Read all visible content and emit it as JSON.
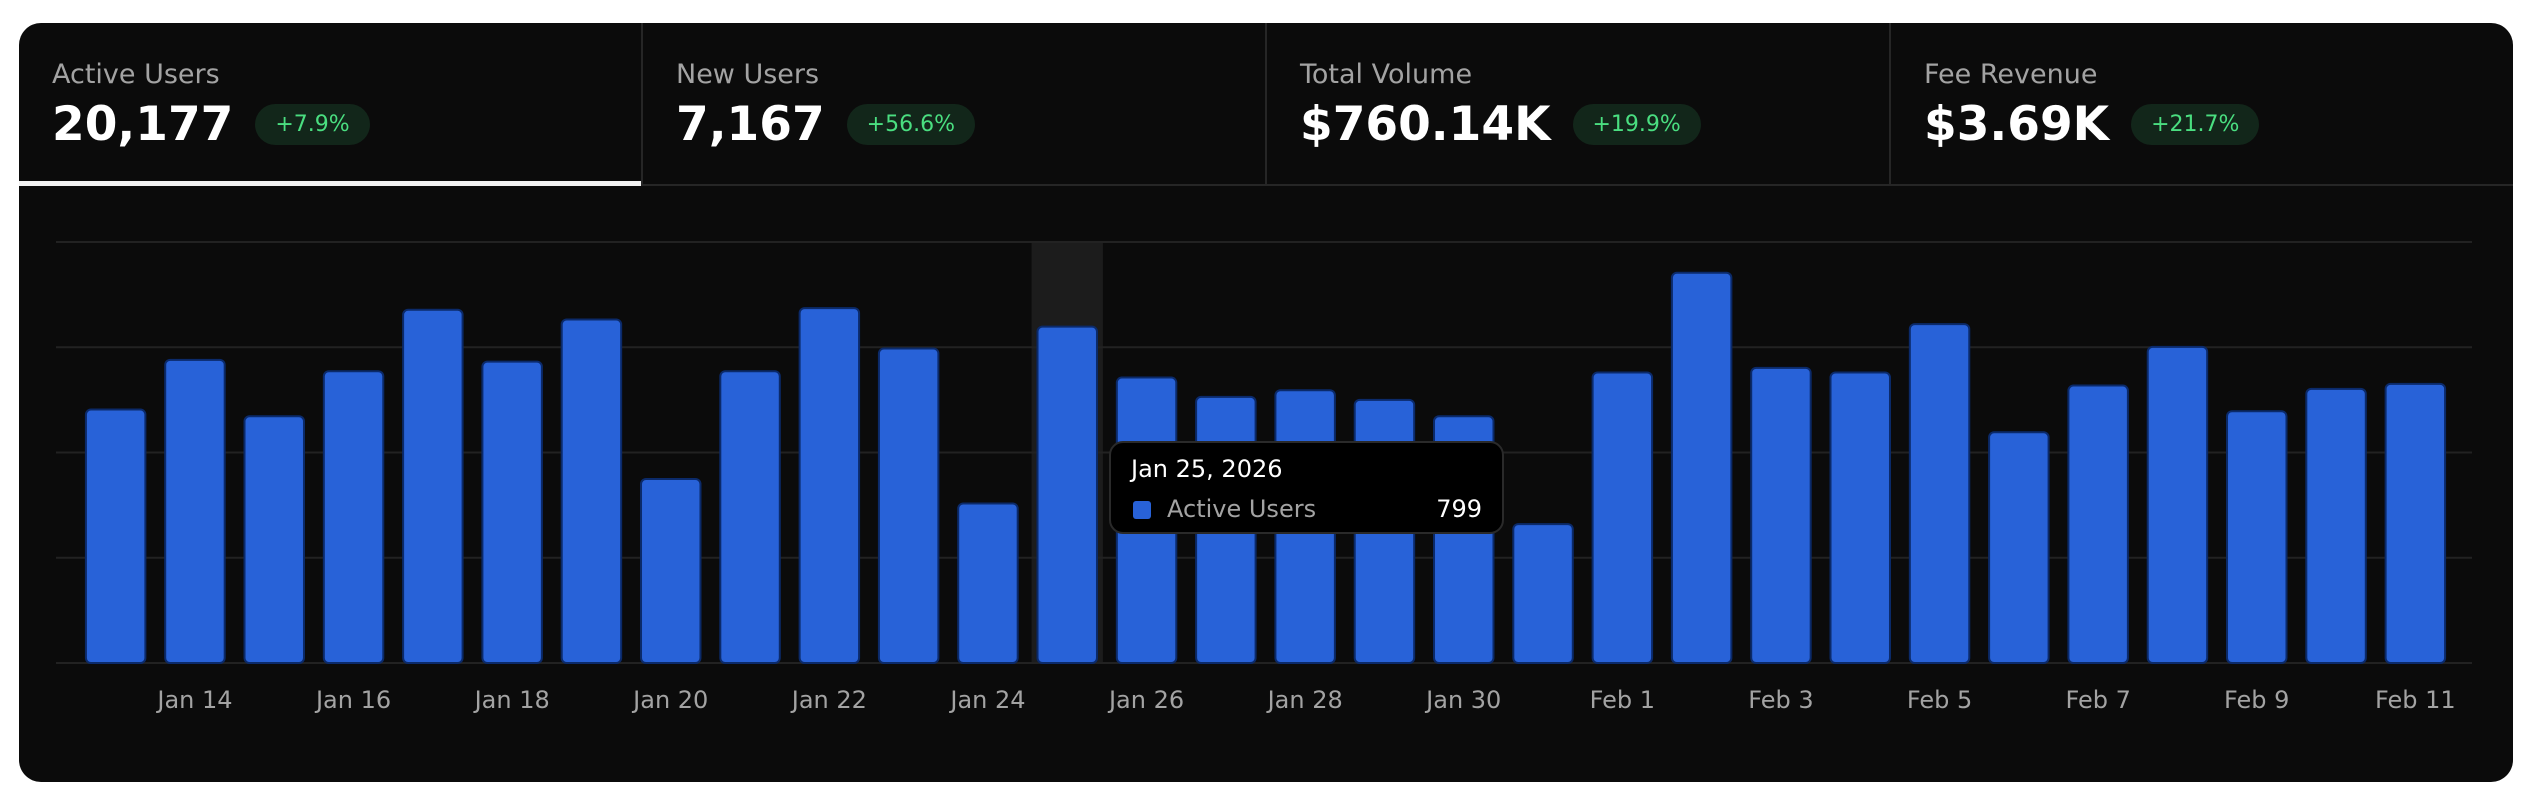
{
  "cards": [
    {
      "label": "Active Users",
      "value": "20,177",
      "delta": "+7.9%"
    },
    {
      "label": "New Users",
      "value": "7,167",
      "delta": "+56.6%"
    },
    {
      "label": "Total Volume",
      "value": "$760.14K",
      "delta": "+19.9%"
    },
    {
      "label": "Fee Revenue",
      "value": "$3.69K",
      "delta": "+21.7%"
    }
  ],
  "chart_data": {
    "type": "bar",
    "categories": [
      null,
      "Jan 14",
      null,
      "Jan 16",
      null,
      "Jan 18",
      null,
      "Jan 20",
      null,
      "Jan 22",
      null,
      "Jan 24",
      null,
      "Jan 26",
      null,
      "Jan 28",
      null,
      "Jan 30",
      null,
      "Feb 1",
      null,
      "Feb 3",
      null,
      "Feb 5",
      null,
      "Feb 7",
      null,
      "Feb 9",
      null,
      "Feb 11"
    ],
    "series": [
      {
        "name": "Active Users",
        "color": "#2862d8",
        "values": [
          602,
          720,
          586,
          693,
          839,
          716,
          816,
          437,
          693,
          843,
          747,
          379,
          799,
          678,
          632,
          648,
          625,
          586,
          330,
          690,
          927,
          701,
          690,
          805,
          548,
          659,
          751,
          598,
          651,
          663
        ]
      }
    ],
    "ylim": [
      0,
      1000
    ],
    "yticks": [
      0,
      250,
      500,
      750,
      1000
    ],
    "grid": true,
    "tooltip_title": "Jan 25, 2026"
  }
}
